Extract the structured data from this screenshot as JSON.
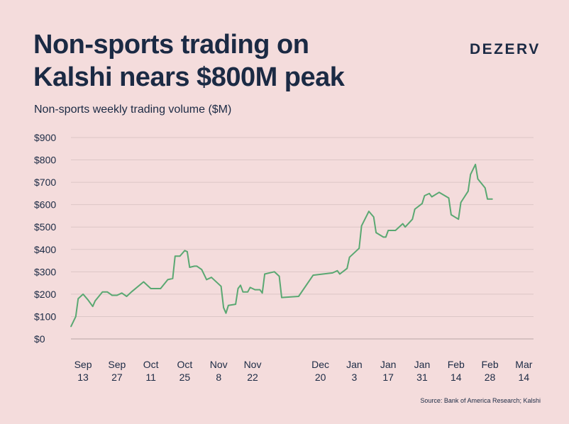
{
  "brand": "DEZERV",
  "source": "Source: Bank of America Research; Kalshi",
  "chart_data": {
    "type": "line",
    "title": [
      "Non-sports trading on",
      "Kalshi nears $800M peak"
    ],
    "subtitle": "Non-sports weekly trading volume ($M)",
    "ylim": [
      0,
      900
    ],
    "yticks": [
      0,
      100,
      200,
      300,
      400,
      500,
      600,
      700,
      800,
      900
    ],
    "ytick_labels": [
      "$0",
      "$100",
      "$200",
      "$300",
      "$400",
      "$500",
      "$600",
      "$700",
      "$800",
      "$900"
    ],
    "grid": true,
    "xticks": [
      {
        "day": 13,
        "line1": "Sep",
        "line2": "13"
      },
      {
        "day": 27,
        "line1": "Sep",
        "line2": "27"
      },
      {
        "day": 41,
        "line1": "Oct",
        "line2": "11"
      },
      {
        "day": 55,
        "line1": "Oct",
        "line2": "25"
      },
      {
        "day": 69,
        "line1": "Nov",
        "line2": "8"
      },
      {
        "day": 83,
        "line1": "Nov",
        "line2": "22"
      },
      {
        "day": 111,
        "line1": "Dec",
        "line2": "20"
      },
      {
        "day": 125,
        "line1": "Jan",
        "line2": "3"
      },
      {
        "day": 139,
        "line1": "Jan",
        "line2": "17"
      },
      {
        "day": 153,
        "line1": "Jan",
        "line2": "31"
      },
      {
        "day": 167,
        "line1": "Feb",
        "line2": "14"
      },
      {
        "day": 181,
        "line1": "Feb",
        "line2": "28"
      },
      {
        "day": 195,
        "line1": "Mar",
        "line2": "14"
      }
    ],
    "xlim": [
      8,
      199
    ],
    "series": [
      {
        "color": "#5aa872",
        "points": [
          [
            8,
            55
          ],
          [
            10,
            100
          ],
          [
            11,
            180
          ],
          [
            13,
            200
          ],
          [
            15,
            175
          ],
          [
            17,
            145
          ],
          [
            18,
            170
          ],
          [
            21,
            210
          ],
          [
            23,
            210
          ],
          [
            25,
            195
          ],
          [
            27,
            195
          ],
          [
            29,
            205
          ],
          [
            31,
            190
          ],
          [
            33,
            210
          ],
          [
            38,
            255
          ],
          [
            41,
            225
          ],
          [
            45,
            225
          ],
          [
            48,
            265
          ],
          [
            50,
            270
          ],
          [
            51,
            370
          ],
          [
            53,
            370
          ],
          [
            55,
            395
          ],
          [
            56,
            390
          ],
          [
            57,
            320
          ],
          [
            59,
            325
          ],
          [
            60,
            325
          ],
          [
            62,
            310
          ],
          [
            64,
            265
          ],
          [
            66,
            275
          ],
          [
            70,
            235
          ],
          [
            71,
            140
          ],
          [
            72,
            115
          ],
          [
            73,
            150
          ],
          [
            76,
            155
          ],
          [
            77,
            225
          ],
          [
            78,
            240
          ],
          [
            79,
            210
          ],
          [
            81,
            210
          ],
          [
            82,
            230
          ],
          [
            84,
            220
          ],
          [
            86,
            220
          ],
          [
            87,
            205
          ],
          [
            88,
            290
          ],
          [
            92,
            300
          ],
          [
            94,
            280
          ],
          [
            95,
            185
          ],
          [
            102,
            190
          ],
          [
            108,
            285
          ],
          [
            116,
            295
          ],
          [
            118,
            305
          ],
          [
            119,
            290
          ],
          [
            122,
            315
          ],
          [
            123,
            365
          ],
          [
            127,
            405
          ],
          [
            128,
            505
          ],
          [
            131,
            570
          ],
          [
            133,
            545
          ],
          [
            134,
            475
          ],
          [
            137,
            455
          ],
          [
            138,
            455
          ],
          [
            139,
            485
          ],
          [
            142,
            485
          ],
          [
            145,
            515
          ],
          [
            146,
            500
          ],
          [
            149,
            535
          ],
          [
            150,
            580
          ],
          [
            153,
            605
          ],
          [
            154,
            640
          ],
          [
            156,
            650
          ],
          [
            157,
            635
          ],
          [
            160,
            655
          ],
          [
            164,
            630
          ],
          [
            165,
            555
          ],
          [
            168,
            535
          ],
          [
            169,
            610
          ],
          [
            172,
            660
          ],
          [
            173,
            735
          ],
          [
            175,
            780
          ],
          [
            176,
            715
          ],
          [
            179,
            675
          ],
          [
            180,
            625
          ],
          [
            182,
            625
          ]
        ]
      }
    ]
  }
}
